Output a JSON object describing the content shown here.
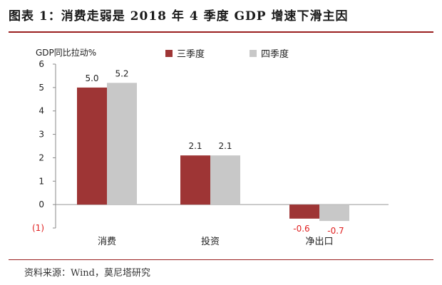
{
  "page": {
    "title": "图表 1：消费走弱是 2018 年 4 季度 GDP 增速下滑主因",
    "source": "资料来源：Wind，莫尼塔研究"
  },
  "colors": {
    "accent": "#9a1f1f",
    "series_q3": "#9e3535",
    "series_q4": "#c8c8c8",
    "negative_label": "#e02020"
  },
  "chart_data": {
    "type": "bar",
    "ylabel": "GDP同比拉动%",
    "ylim": [
      -1,
      6
    ],
    "yticks": [
      6,
      5,
      4,
      3,
      2,
      1,
      0,
      -1
    ],
    "ytick_labels": [
      "6",
      "5",
      "4",
      "3",
      "2",
      "1",
      "0",
      "(1)"
    ],
    "categories": [
      "消费",
      "投资",
      "净出口"
    ],
    "series": [
      {
        "name": "三季度",
        "values": [
          5.0,
          2.1,
          -0.6
        ],
        "labels": [
          "5.0",
          "2.1",
          "-0.6"
        ]
      },
      {
        "name": "四季度",
        "values": [
          5.2,
          2.1,
          -0.7
        ],
        "labels": [
          "5.2",
          "2.1",
          "-0.7"
        ]
      }
    ],
    "legend": "top",
    "grid": false
  }
}
